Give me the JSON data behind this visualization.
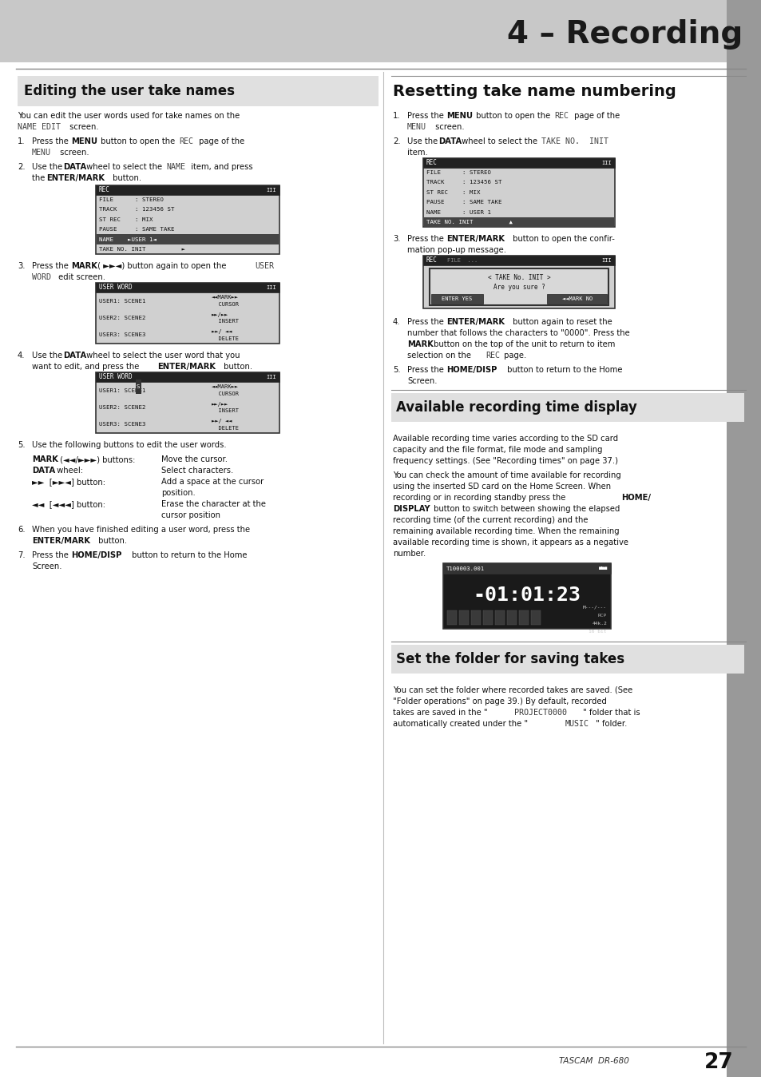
{
  "page_bg": "#ffffff",
  "header_bg": "#cccccc",
  "header_text": "4 – Recording",
  "footer_brand": "TASCAM  DR-680",
  "footer_page": "27",
  "left_section_title": "Editing the user take names",
  "right_section1_title": "Resetting take name numbering",
  "right_section2_title": "Available recording time display",
  "right_section3_title": "Set the folder for saving takes"
}
